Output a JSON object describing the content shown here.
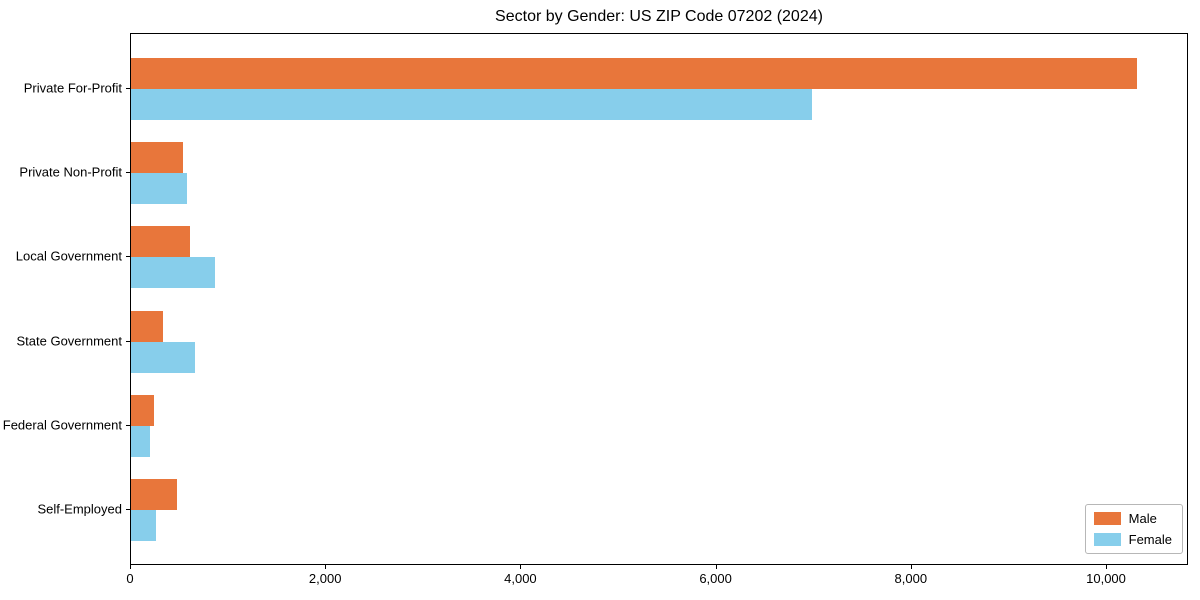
{
  "chart_data": {
    "type": "bar",
    "orientation": "horizontal",
    "title": "Sector by Gender: US ZIP Code 07202 (2024)",
    "categories": [
      "Private For-Profit",
      "Private Non-Profit",
      "Local Government",
      "State Government",
      "Federal Government",
      "Self-Employed"
    ],
    "series": [
      {
        "name": "Male",
        "color": "#e8763b",
        "values": [
          10310,
          530,
          600,
          330,
          240,
          470
        ]
      },
      {
        "name": "Female",
        "color": "#87ceeb",
        "values": [
          6980,
          570,
          860,
          660,
          190,
          260
        ]
      }
    ],
    "xlabel": "",
    "ylabel": "",
    "xlim": [
      0,
      10840
    ],
    "xticks": [
      0,
      2000,
      4000,
      6000,
      8000,
      10000
    ],
    "xtick_labels": [
      "0",
      "2,000",
      "4,000",
      "6,000",
      "8,000",
      "10,000"
    ],
    "grid": false,
    "legend_position": "lower right",
    "legend_labels": [
      "Male",
      "Female"
    ]
  }
}
